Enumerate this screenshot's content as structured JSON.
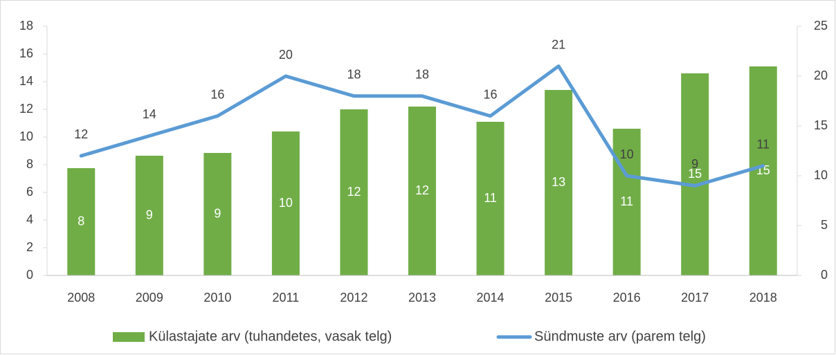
{
  "chart_data": {
    "type": "combo",
    "categories": [
      "2008",
      "2009",
      "2010",
      "2011",
      "2012",
      "2013",
      "2014",
      "2015",
      "2016",
      "2017",
      "2018"
    ],
    "series": [
      {
        "name": "Külastajate arv (tuhandetes, vasak telg)",
        "type": "bar",
        "axis": "y",
        "color": "#70ad47",
        "values": [
          7.75,
          8.65,
          8.85,
          10.4,
          12.0,
          12.2,
          11.1,
          13.4,
          10.6,
          14.6,
          15.1
        ],
        "value_labels": [
          "8",
          "9",
          "9",
          "10",
          "12",
          "12",
          "11",
          "13",
          "11",
          "15",
          "15"
        ]
      },
      {
        "name": "Sündmuste arv (parem telg)",
        "type": "line",
        "axis": "y2",
        "color": "#5b9bd5",
        "values": [
          12,
          14,
          16,
          20,
          18,
          18,
          16,
          21,
          10,
          9,
          11
        ]
      }
    ],
    "ylim": [
      0,
      18
    ],
    "yticks": [
      0,
      2,
      4,
      6,
      8,
      10,
      12,
      14,
      16,
      18
    ],
    "y2lim": [
      0,
      25
    ],
    "y2ticks": [
      0,
      5,
      10,
      15,
      20,
      25
    ],
    "grid": false,
    "legend": "bottom"
  }
}
